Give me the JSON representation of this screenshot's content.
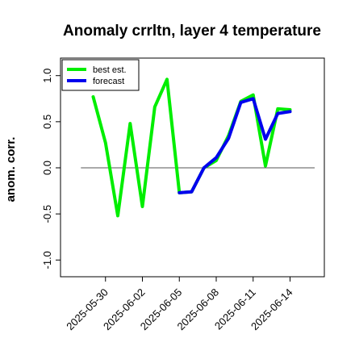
{
  "chart_data": {
    "type": "line",
    "title": "Anomaly crrltn, layer 4 temperature",
    "xlabel": "",
    "ylabel": "anom. corr.",
    "ylim": [
      -1.05,
      1.05
    ],
    "yticks": [
      -1.0,
      -0.5,
      0.0,
      0.5,
      1.0
    ],
    "ytick_labels": [
      "-1.0",
      "-0.5",
      "0.0",
      "0.5",
      "1.0"
    ],
    "xlim": [
      "2025-05-27",
      "2025-06-16"
    ],
    "xticks": [
      "2025-05-30",
      "2025-06-02",
      "2025-06-05",
      "2025-06-08",
      "2025-06-11",
      "2025-06-14"
    ],
    "xtick_labels": [
      "2025-05-30",
      "2025-06-02",
      "2025-06-05",
      "2025-06-08",
      "2025-06-11",
      "2025-06-14"
    ],
    "highlight_tick": "2025-06-05",
    "highlight_color": "#228b22",
    "reference_line": 0.0,
    "legend_position": "top-left",
    "series": [
      {
        "name": "best est.",
        "color": "#00ee00",
        "x": [
          "2025-05-29",
          "2025-05-30",
          "2025-05-31",
          "2025-06-01",
          "2025-06-02",
          "2025-06-03",
          "2025-06-04",
          "2025-06-05",
          "2025-06-06",
          "2025-06-07",
          "2025-06-08",
          "2025-06-09",
          "2025-06-10",
          "2025-06-11",
          "2025-06-12",
          "2025-06-13",
          "2025-06-14"
        ],
        "values": [
          0.77,
          0.27,
          -0.52,
          0.48,
          -0.42,
          0.66,
          0.96,
          -0.27,
          -0.26,
          0.0,
          0.08,
          0.35,
          0.72,
          0.79,
          0.02,
          0.64,
          0.63
        ]
      },
      {
        "name": "forecast",
        "color": "#0000ee",
        "x": [
          "2025-06-05",
          "2025-06-06",
          "2025-06-07",
          "2025-06-08",
          "2025-06-09",
          "2025-06-10",
          "2025-06-11",
          "2025-06-12",
          "2025-06-13",
          "2025-06-14"
        ],
        "values": [
          -0.27,
          -0.26,
          0.0,
          0.11,
          0.32,
          0.71,
          0.75,
          0.31,
          0.59,
          0.61
        ]
      }
    ]
  }
}
